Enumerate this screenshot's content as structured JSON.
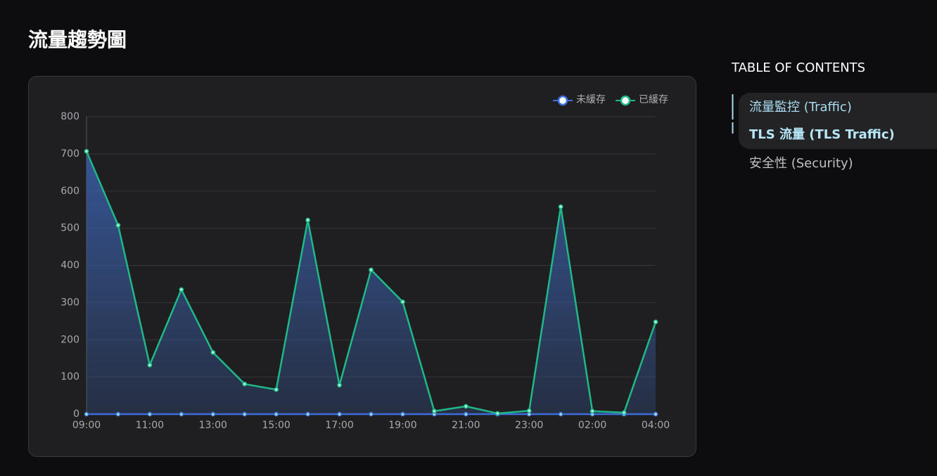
{
  "page": {
    "title": "流量趨勢圖"
  },
  "chart_data": {
    "type": "line",
    "categories": [
      "09:00",
      null,
      "11:00",
      null,
      "13:00",
      null,
      "15:00",
      null,
      "17:00",
      null,
      "19:00",
      null,
      "21:00",
      null,
      "23:00",
      null,
      "02:00",
      null,
      "04:00"
    ],
    "series": [
      {
        "name": "未緩存",
        "color": "#3d6fe0",
        "values": [
          0,
          0,
          0,
          0,
          0,
          0,
          0,
          0,
          0,
          0,
          0,
          0,
          0,
          0,
          0,
          0,
          0,
          0,
          0
        ]
      },
      {
        "name": "已緩存",
        "color": "#1fb888",
        "area_color": "#3a5fa8",
        "values": [
          707,
          508,
          132,
          335,
          166,
          81,
          66,
          522,
          78,
          388,
          302,
          8,
          21,
          2,
          9,
          558,
          8,
          4,
          248
        ]
      }
    ],
    "ylim": [
      0,
      800
    ],
    "yticks": [
      0,
      100,
      200,
      300,
      400,
      500,
      600,
      700,
      800
    ],
    "grid": true,
    "legend": "top-right"
  },
  "toc": {
    "title": "TABLE OF CONTENTS",
    "items": [
      "流量監控 (Traffic)",
      "TLS 流量 (TLS Traffic)",
      "安全性 (Security)"
    ]
  }
}
